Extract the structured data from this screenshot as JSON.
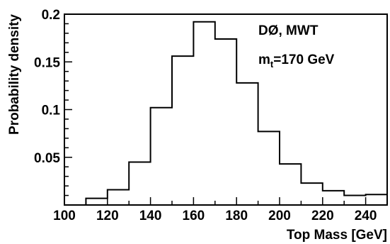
{
  "chart_data": {
    "type": "bar",
    "title": "",
    "xlabel": "Top Mass [GeV]",
    "ylabel": "Probability density",
    "xlim": [
      100,
      250
    ],
    "ylim": [
      0,
      0.2
    ],
    "x_ticks": [
      100,
      120,
      140,
      160,
      180,
      200,
      220,
      240
    ],
    "y_ticks": [
      0.05,
      0.1,
      0.15,
      0.2
    ],
    "x_tick_labels": [
      "100",
      "120",
      "140",
      "160",
      "180",
      "200",
      "220",
      "240"
    ],
    "y_tick_labels": [
      "0.05",
      "0.1",
      "0.15",
      "0.2"
    ],
    "bin_edges": [
      110,
      120,
      130,
      140,
      150,
      160,
      170,
      180,
      190,
      200,
      210,
      220,
      230,
      240,
      250
    ],
    "values": [
      0.007,
      0.016,
      0.045,
      0.102,
      0.156,
      0.192,
      0.174,
      0.128,
      0.077,
      0.043,
      0.023,
      0.015,
      0.01,
      0.011
    ],
    "grid": false,
    "annotations": {
      "experiment": "DØ, MWT",
      "mass_main": "m",
      "mass_sub": "t",
      "mass_rest": "=170 GeV"
    }
  }
}
